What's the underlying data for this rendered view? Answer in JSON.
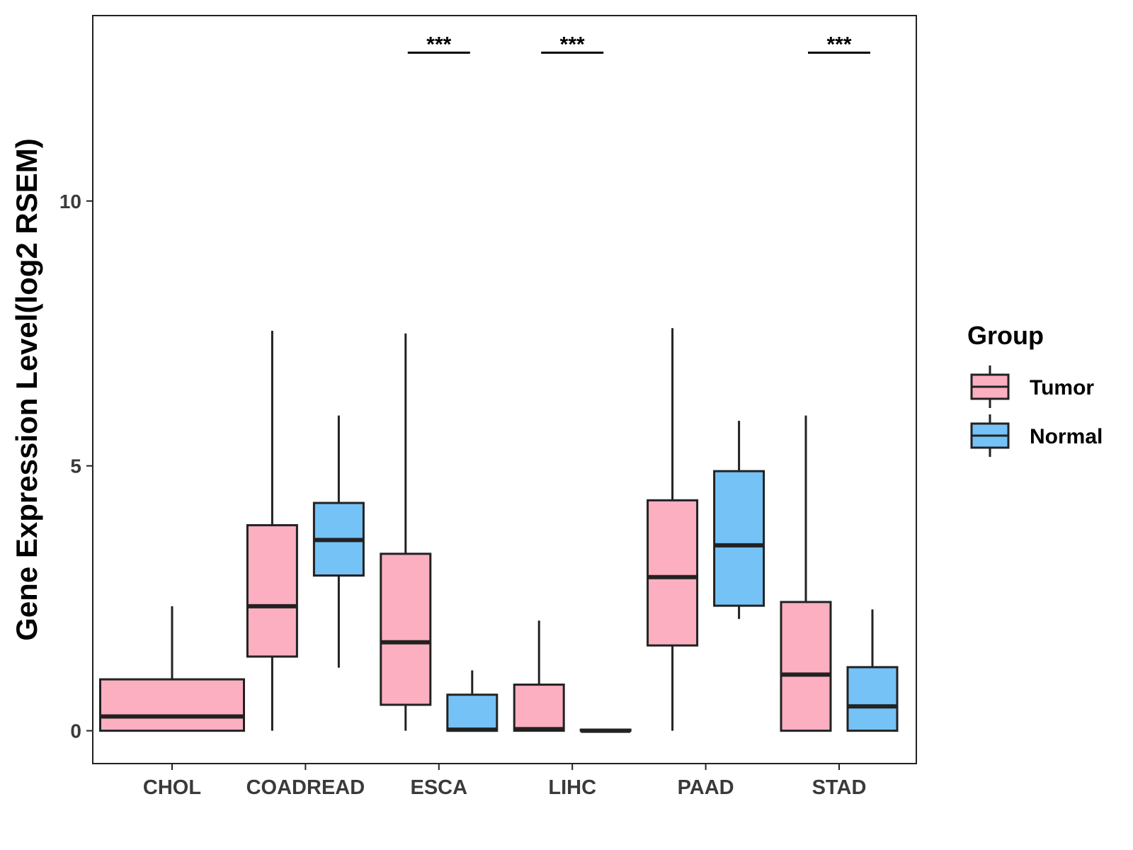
{
  "chart_data": {
    "type": "box",
    "ylabel": "Gene Expression Level(log2 RSEM)",
    "xlabel": "",
    "ylim": [
      -0.62,
      13.5
    ],
    "yticks": [
      0,
      5,
      10
    ],
    "categories": [
      "CHOL",
      "COADREAD",
      "ESCA",
      "LIHC",
      "PAAD",
      "STAD"
    ],
    "legend": {
      "title": "Group",
      "position": "right",
      "entries": [
        {
          "name": "Tumor",
          "color": "#FCAFC0"
        },
        {
          "name": "Normal",
          "color": "#75C2F7"
        }
      ]
    },
    "series": [
      {
        "name": "Tumor",
        "color": "#FCAFC0",
        "boxes": [
          {
            "category": "CHOL",
            "min": 0,
            "q1": 0,
            "median": 0.27,
            "q3": 0.97,
            "max": 2.35
          },
          {
            "category": "COADREAD",
            "min": 0,
            "q1": 1.4,
            "median": 2.35,
            "q3": 3.88,
            "max": 7.55
          },
          {
            "category": "ESCA",
            "min": 0,
            "q1": 0.49,
            "median": 1.67,
            "q3": 3.34,
            "max": 7.5
          },
          {
            "category": "LIHC",
            "min": 0,
            "q1": 0,
            "median": 0.03,
            "q3": 0.87,
            "max": 2.08
          },
          {
            "category": "PAAD",
            "min": 0,
            "q1": 1.61,
            "median": 2.9,
            "q3": 4.35,
            "max": 7.6
          },
          {
            "category": "STAD",
            "min": 0,
            "q1": 0,
            "median": 1.06,
            "q3": 2.43,
            "max": 5.95
          }
        ]
      },
      {
        "name": "Normal",
        "color": "#75C2F7",
        "boxes": [
          {
            "category": "COADREAD",
            "min": 1.19,
            "q1": 2.93,
            "median": 3.6,
            "q3": 4.3,
            "max": 5.95
          },
          {
            "category": "ESCA",
            "min": 0,
            "q1": 0,
            "median": 0.02,
            "q3": 0.68,
            "max": 1.14
          },
          {
            "category": "LIHC",
            "min": 0,
            "q1": 0,
            "median": 0,
            "q3": 0.02,
            "max": 0.04
          },
          {
            "category": "PAAD",
            "min": 2.11,
            "q1": 2.36,
            "median": 3.5,
            "q3": 4.9,
            "max": 5.85
          },
          {
            "category": "STAD",
            "min": 0,
            "q1": 0,
            "median": 0.46,
            "q3": 1.2,
            "max": 2.29
          }
        ]
      }
    ],
    "annotations": [
      {
        "category": "ESCA",
        "text": "***",
        "y": 12.8
      },
      {
        "category": "LIHC",
        "text": "***",
        "y": 12.8
      },
      {
        "category": "STAD",
        "text": "***",
        "y": 12.8
      }
    ]
  }
}
